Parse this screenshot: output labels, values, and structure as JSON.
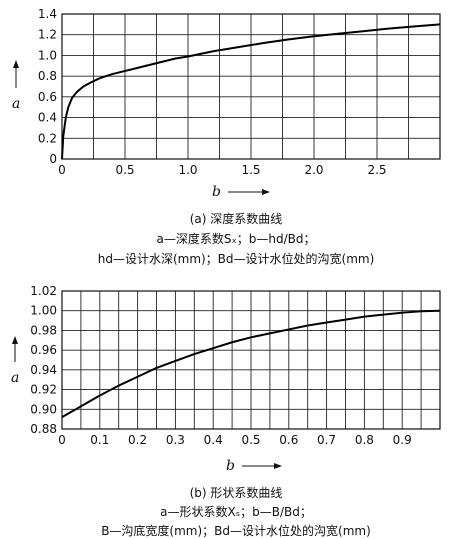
{
  "chart_data": [
    {
      "type": "line",
      "xlabel": "b",
      "ylabel": "a",
      "xlim": [
        0,
        3.0
      ],
      "ylim": [
        0,
        1.4
      ],
      "xticks": [
        "0",
        "0.5",
        "1.0",
        "1.5",
        "2.0",
        "2.5"
      ],
      "yticks": [
        "0",
        "0.2",
        "0.4",
        "0.6",
        "0.8",
        "1.0",
        "1.2",
        "1.4"
      ],
      "grid": true,
      "series": [
        {
          "x": [
            0.0,
            0.01,
            0.03,
            0.05,
            0.08,
            0.12,
            0.17,
            0.23,
            0.3,
            0.4,
            0.5,
            0.6,
            0.7,
            0.8,
            0.9,
            1.0,
            1.2,
            1.4,
            1.6,
            1.8,
            2.0,
            2.2,
            2.4,
            2.6,
            2.8,
            3.0
          ],
          "values": [
            0.0,
            0.22,
            0.4,
            0.5,
            0.59,
            0.65,
            0.7,
            0.74,
            0.78,
            0.82,
            0.85,
            0.88,
            0.91,
            0.94,
            0.97,
            0.99,
            1.04,
            1.08,
            1.12,
            1.155,
            1.185,
            1.21,
            1.235,
            1.26,
            1.28,
            1.3
          ]
        }
      ],
      "caption": {
        "title": "(a) 深度系数曲线",
        "line1": "a—深度系数Sₓ；b—hd/Bd；",
        "line2": "hd—设计水深(mm)；Bd—设计水位处的沟宽(mm)"
      }
    },
    {
      "type": "line",
      "xlabel": "b",
      "ylabel": "a",
      "xlim": [
        0,
        1.0
      ],
      "ylim": [
        0.88,
        1.02
      ],
      "xticks": [
        "0",
        "0.1",
        "0.2",
        "0.3",
        "0.4",
        "0.5",
        "0.6",
        "0.7",
        "0.8",
        "0.9"
      ],
      "yticks": [
        "0.88",
        "0.90",
        "0.92",
        "0.94",
        "0.96",
        "0.98",
        "1.00",
        "1.02"
      ],
      "grid": true,
      "series": [
        {
          "x": [
            0.0,
            0.05,
            0.1,
            0.15,
            0.2,
            0.25,
            0.3,
            0.35,
            0.4,
            0.45,
            0.5,
            0.55,
            0.6,
            0.65,
            0.7,
            0.75,
            0.8,
            0.85,
            0.9,
            0.95,
            1.0
          ],
          "values": [
            0.892,
            0.903,
            0.914,
            0.924,
            0.933,
            0.942,
            0.949,
            0.956,
            0.962,
            0.968,
            0.973,
            0.977,
            0.981,
            0.985,
            0.988,
            0.991,
            0.994,
            0.996,
            0.998,
            0.9995,
            1.0
          ]
        }
      ],
      "caption": {
        "title": "(b) 形状系数曲线",
        "line1": "a—形状系数Xₛ；b—B/Bd；",
        "line2": "B—沟底宽度(mm)；Bd—设计水位处的沟宽(mm)"
      }
    }
  ]
}
